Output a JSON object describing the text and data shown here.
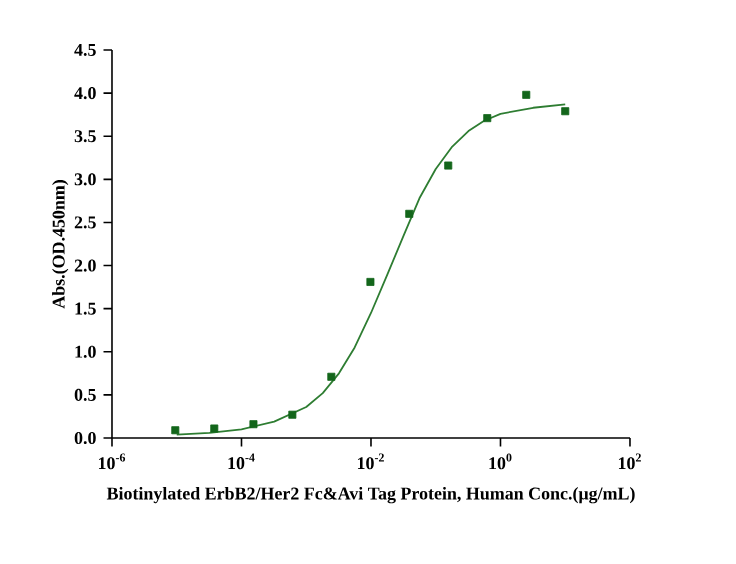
{
  "chart_data": {
    "type": "scatter",
    "xlabel": "Biotinylated ErbB2/Her2 Fc&Avi Tag Protein, Human Conc.(μg/mL)",
    "ylabel": "Abs.(OD.450nm)",
    "log": "x",
    "grid": false,
    "legend": false,
    "xlim": [
      1e-06,
      100
    ],
    "ylim": [
      0,
      4.5
    ],
    "xticks": [
      {
        "value": 1e-06,
        "label": "10$^{-6}$"
      },
      {
        "value": 0.0001,
        "label": "10$^{-4}$"
      },
      {
        "value": 0.01,
        "label": "10$^{-2}$"
      },
      {
        "value": 1,
        "label": "10$^{0}$"
      },
      {
        "value": 100,
        "label": "10$^{2}$"
      }
    ],
    "yticks": [
      {
        "value": 0,
        "label": "0.0"
      },
      {
        "value": 0.5,
        "label": "0.5"
      },
      {
        "value": 1,
        "label": "1.0"
      },
      {
        "value": 1.5,
        "label": "1.5"
      },
      {
        "value": 2,
        "label": "2.0"
      },
      {
        "value": 2.5,
        "label": "2.5"
      },
      {
        "value": 3,
        "label": "3.0"
      },
      {
        "value": 3.5,
        "label": "3.5"
      },
      {
        "value": 4,
        "label": "4.0"
      },
      {
        "value": 4.5,
        "label": "4.5"
      }
    ],
    "series": [
      {
        "marker": "square",
        "color": "#13661b",
        "x": [
          9.5e-06,
          3.8e-05,
          0.000153,
          0.00061,
          0.00244,
          0.0098,
          0.039,
          0.156,
          0.625,
          2.5,
          10
        ],
        "values": [
          0.09,
          0.11,
          0.16,
          0.27,
          0.71,
          1.81,
          2.6,
          3.16,
          3.71,
          3.98,
          3.79
        ]
      },
      {
        "type": "line",
        "marker": "none",
        "line_style": "solid",
        "color": "#2e7d32",
        "x": [
          1e-05,
          3.2e-05,
          0.0001,
          0.00032,
          0.001,
          0.0018,
          0.0032,
          0.0056,
          0.01,
          0.018,
          0.032,
          0.056,
          0.1,
          0.18,
          0.32,
          0.56,
          1,
          3.2,
          10
        ],
        "values": [
          0.04,
          0.06,
          0.1,
          0.19,
          0.36,
          0.52,
          0.75,
          1.05,
          1.45,
          1.9,
          2.35,
          2.78,
          3.12,
          3.38,
          3.56,
          3.68,
          3.76,
          3.83,
          3.87
        ]
      }
    ]
  }
}
